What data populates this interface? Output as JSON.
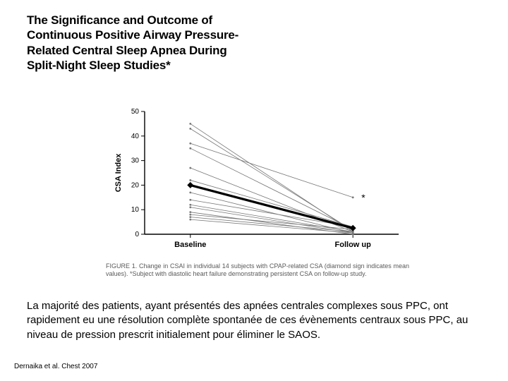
{
  "title": {
    "line1": "The Significance and Outcome of",
    "line2": "Continuous Positive Airway Pressure-",
    "line3": "Related Central Sleep Apnea During",
    "line4": "Split-Night Sleep Studies*"
  },
  "chart": {
    "type": "line",
    "ylabel": "CSA Index",
    "ylim": [
      0,
      50
    ],
    "ytick_step": 10,
    "yticks": [
      0,
      10,
      20,
      30,
      40,
      50
    ],
    "xcategories": [
      "Baseline",
      "Follow up"
    ],
    "axis_color": "#000000",
    "thin_line_color": "#777777",
    "thin_line_width": 0.8,
    "mean_line_color": "#000000",
    "mean_line_width": 3.2,
    "background_color": "#ffffff",
    "label_fontsize": 11,
    "tick_fontsize": 10,
    "series": [
      {
        "baseline": 45,
        "followup": 1
      },
      {
        "baseline": 43,
        "followup": 1.5
      },
      {
        "baseline": 37,
        "followup": 15,
        "annotation": "*"
      },
      {
        "baseline": 35,
        "followup": 2
      },
      {
        "baseline": 27,
        "followup": 1
      },
      {
        "baseline": 22,
        "followup": 3
      },
      {
        "baseline": 17,
        "followup": 0.5
      },
      {
        "baseline": 14,
        "followup": 3
      },
      {
        "baseline": 12,
        "followup": 1
      },
      {
        "baseline": 11,
        "followup": 0.5
      },
      {
        "baseline": 9,
        "followup": 0
      },
      {
        "baseline": 8,
        "followup": 2
      },
      {
        "baseline": 7,
        "followup": 1
      },
      {
        "baseline": 6,
        "followup": 0.5
      }
    ],
    "mean": {
      "baseline": 20,
      "followup": 2.5
    },
    "mean_marker": "diamond",
    "mean_marker_size": 9
  },
  "caption": {
    "label": "FIGURE 1.",
    "text": "Change in CSAI in individual 14 subjects with CPAP-related CSA (diamond sign indicates mean values). *Subject with diastolic heart failure demonstrating persistent CSA on follow-up study."
  },
  "paragraph": "La majorité des patients, ayant présentés des apnées centrales complexes sous PPC, ont rapidement eu une résolution complète spontanée de ces évènements centraux sous PPC, au niveau de pression prescrit initialement pour éliminer le SAOS.",
  "citation": "Dernaika et al. Chest 2007"
}
